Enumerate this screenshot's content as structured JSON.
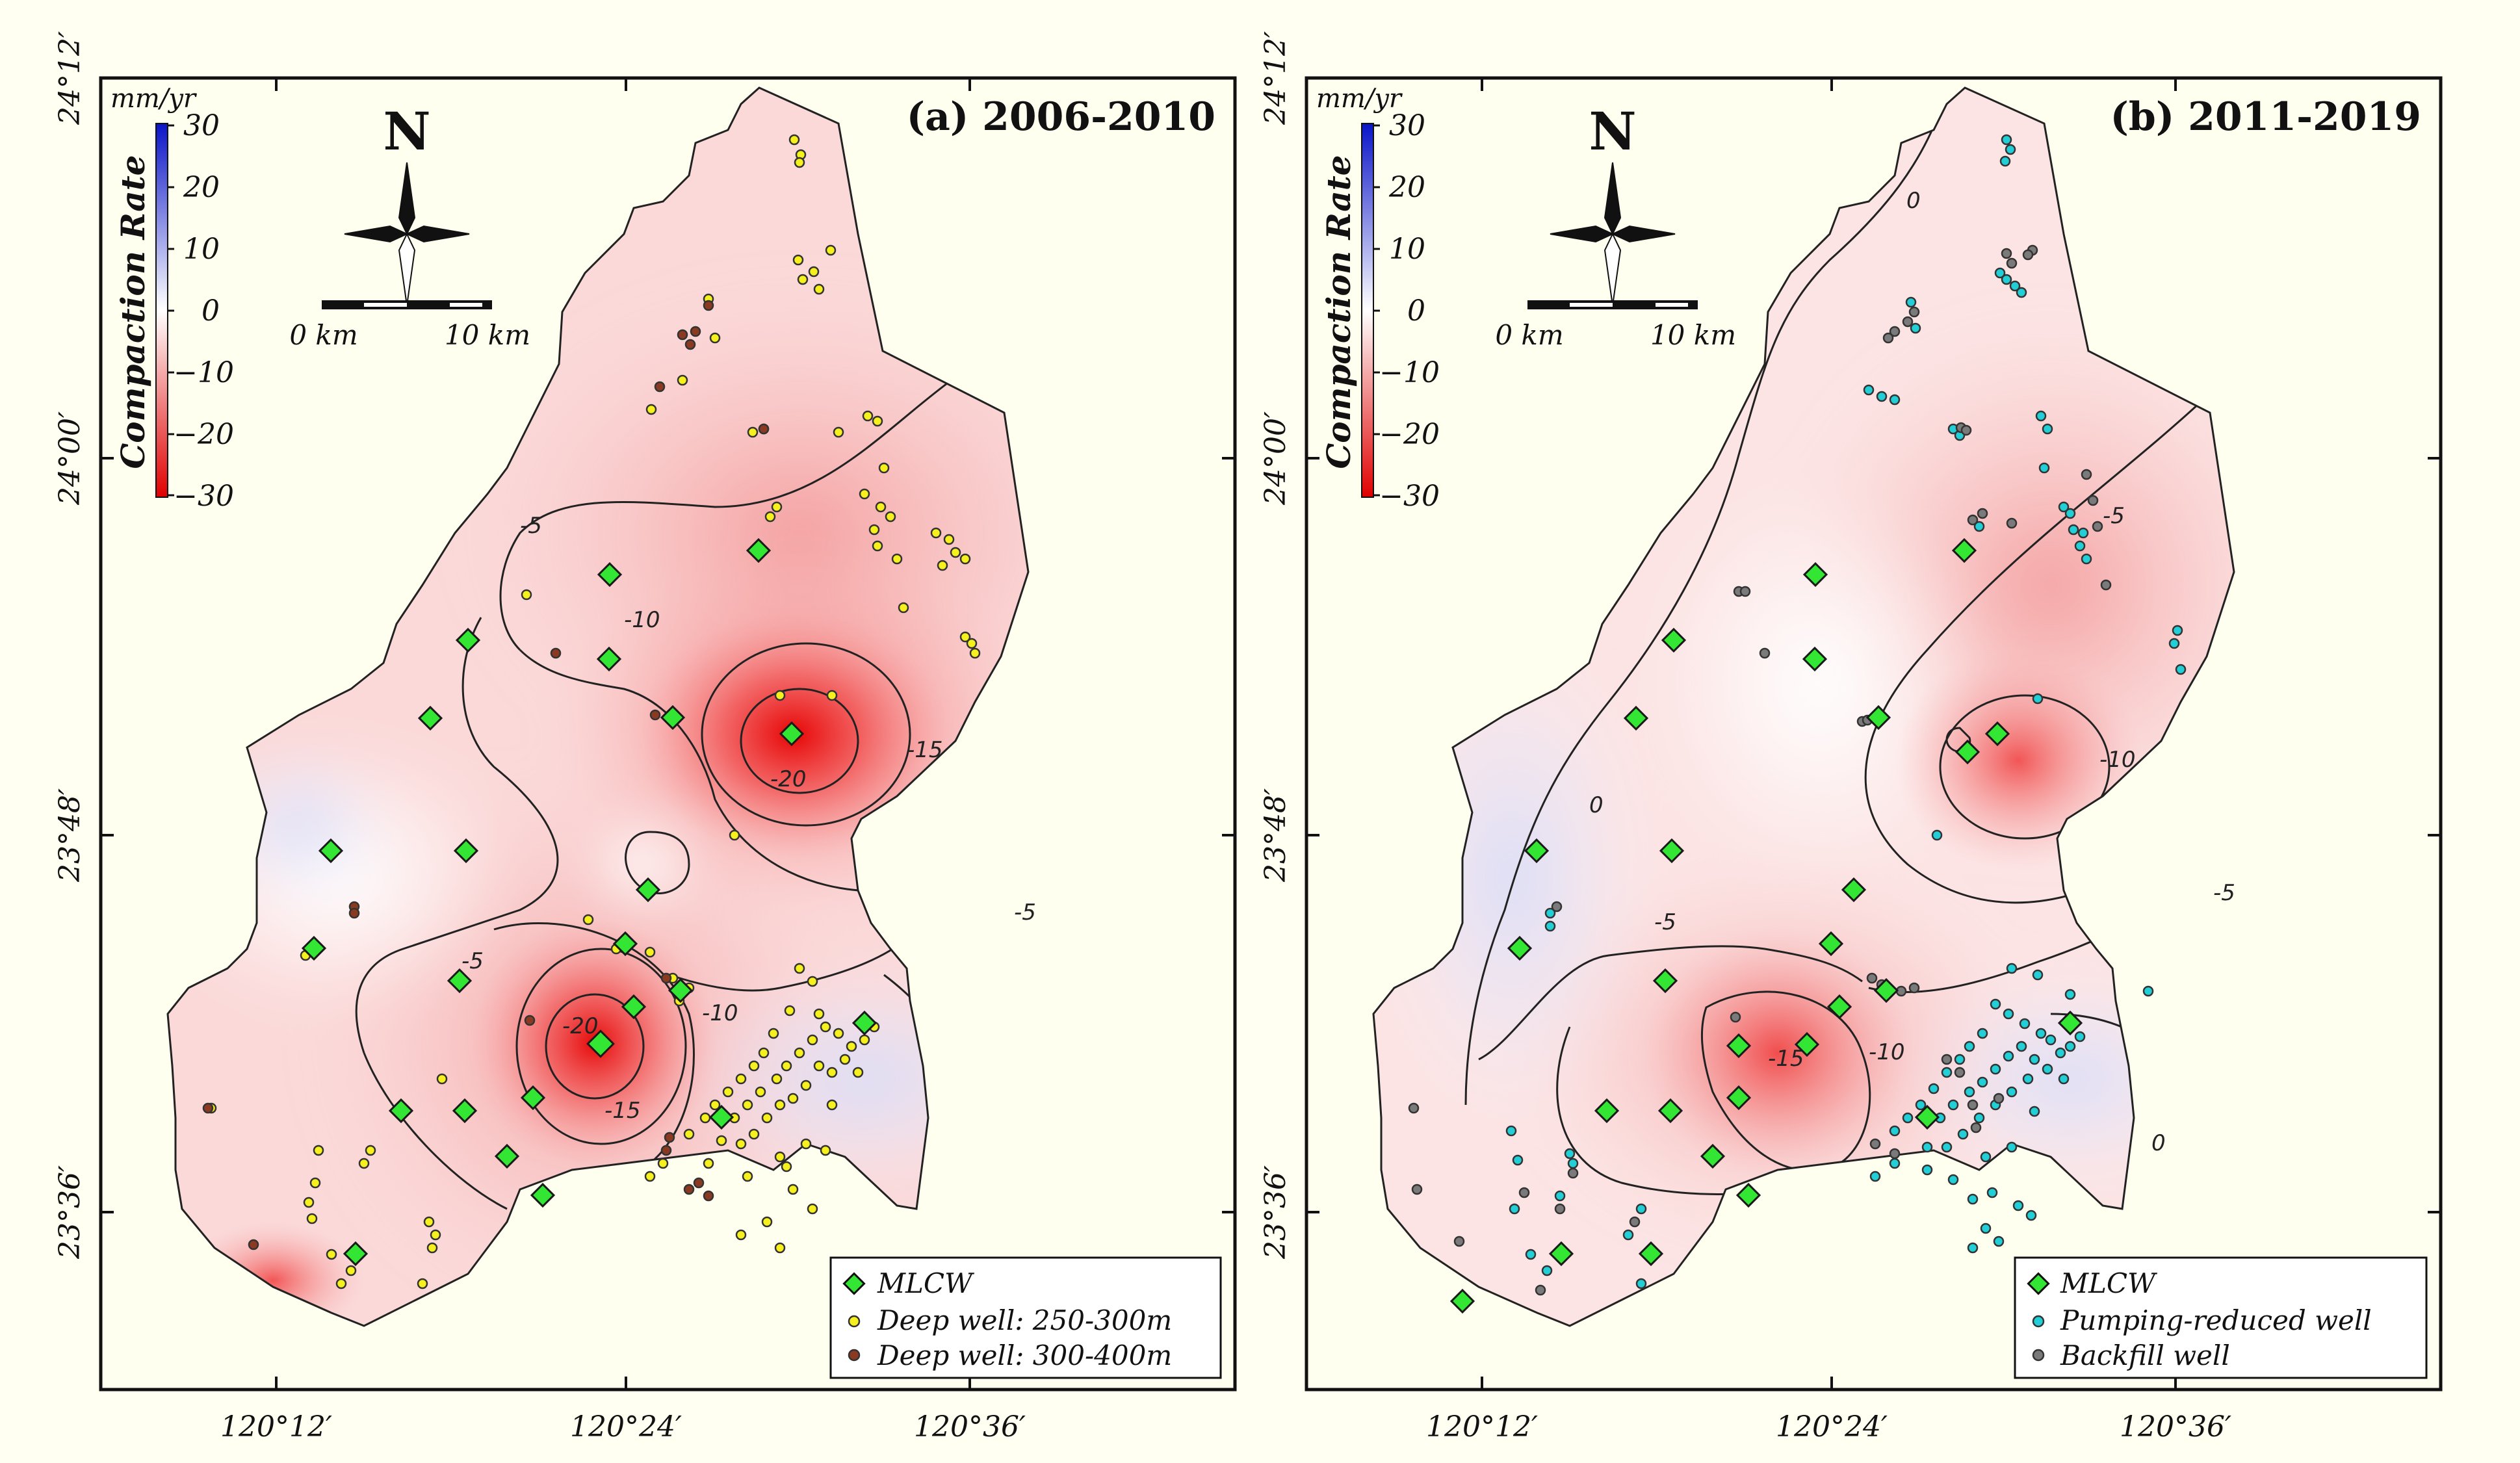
{
  "figure": {
    "x_ticks": [
      "120°12′",
      "120°24′",
      "120°36′"
    ],
    "y_ticks": [
      "24°12′",
      "24°00′",
      "23°48′",
      "23°36′"
    ],
    "colorbar": {
      "unit": "mm/yr",
      "title": "Compaction Rate",
      "ticks": [
        "30",
        "20",
        "10",
        "0",
        "−10",
        "−20",
        "−30"
      ],
      "colors": {
        "max": "#0a14c8",
        "mid": "#ffffff",
        "min": "#e00000"
      }
    },
    "north_label": "N",
    "scale_bar": {
      "left_label": "0 km",
      "right_label": "10 km"
    },
    "marker_colors": {
      "mlcw": "#33e633",
      "deep_250_300": "#f5f01e",
      "deep_300_400": "#8b3a22",
      "pumping_reduced": "#22cfd6",
      "backfill": "#7a7a7a"
    }
  },
  "panels": [
    {
      "title": "(a) 2006-2010",
      "contour_labels": [
        "-5",
        "-10",
        "-15",
        "-20",
        "-20",
        "-15",
        "-10",
        "-5",
        "-5"
      ],
      "legend": [
        "MLCW",
        "Deep well: 250-300m",
        "Deep well: 300-400m"
      ]
    },
    {
      "title": "(b) 2011-2019",
      "contour_labels": [
        "0",
        "-5",
        "-10",
        "0",
        "-5",
        "-5",
        "-15",
        "-10",
        "0"
      ],
      "legend": [
        "MLCW",
        "Pumping-reduced well",
        "Backfill well"
      ]
    }
  ]
}
